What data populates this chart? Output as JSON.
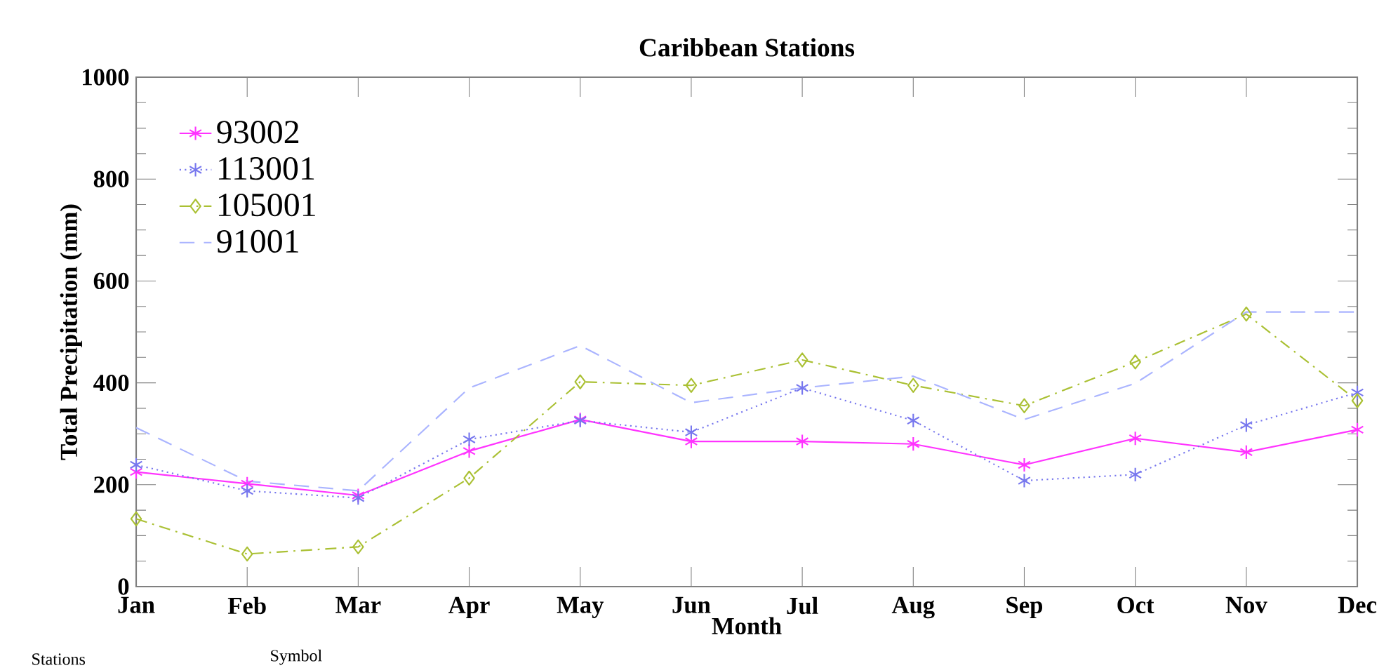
{
  "chart_data": {
    "type": "line",
    "title": "Caribbean Stations",
    "xlabel": "Month",
    "ylabel": "Total Precipitation (mm)",
    "categories": [
      "Jan",
      "Feb",
      "Mar",
      "Apr",
      "May",
      "Jun",
      "Jul",
      "Aug",
      "Sep",
      "Oct",
      "Nov",
      "Dec"
    ],
    "series": [
      {
        "name": "93002",
        "color": "#ff33ff",
        "marker": "cross",
        "line_style": "solid",
        "values": [
          225,
          202,
          179,
          266,
          328,
          285,
          285,
          280,
          239,
          291,
          264,
          308
        ]
      },
      {
        "name": "113001",
        "color": "#7777ee",
        "marker": "cross",
        "line_style": "dotted",
        "values": [
          239,
          188,
          174,
          289,
          326,
          303,
          390,
          326,
          208,
          220,
          317,
          381
        ]
      },
      {
        "name": "105001",
        "color": "#aac033",
        "marker": "diamond",
        "line_style": "dashdot",
        "values": [
          133,
          64,
          78,
          213,
          402,
          395,
          445,
          395,
          355,
          441,
          535,
          365
        ]
      },
      {
        "name": "91001",
        "color": "#aab4ff",
        "marker": "none",
        "line_style": "dashed",
        "values": [
          312,
          207,
          188,
          390,
          473,
          361,
          390,
          413,
          328,
          399,
          539,
          539
        ]
      }
    ],
    "ylim": [
      0,
      1000
    ],
    "yticks": [
      0,
      200,
      400,
      600,
      800,
      1000
    ],
    "grid": false,
    "legend": "top left",
    "annotations": [
      "Stations",
      "Symbol"
    ]
  }
}
